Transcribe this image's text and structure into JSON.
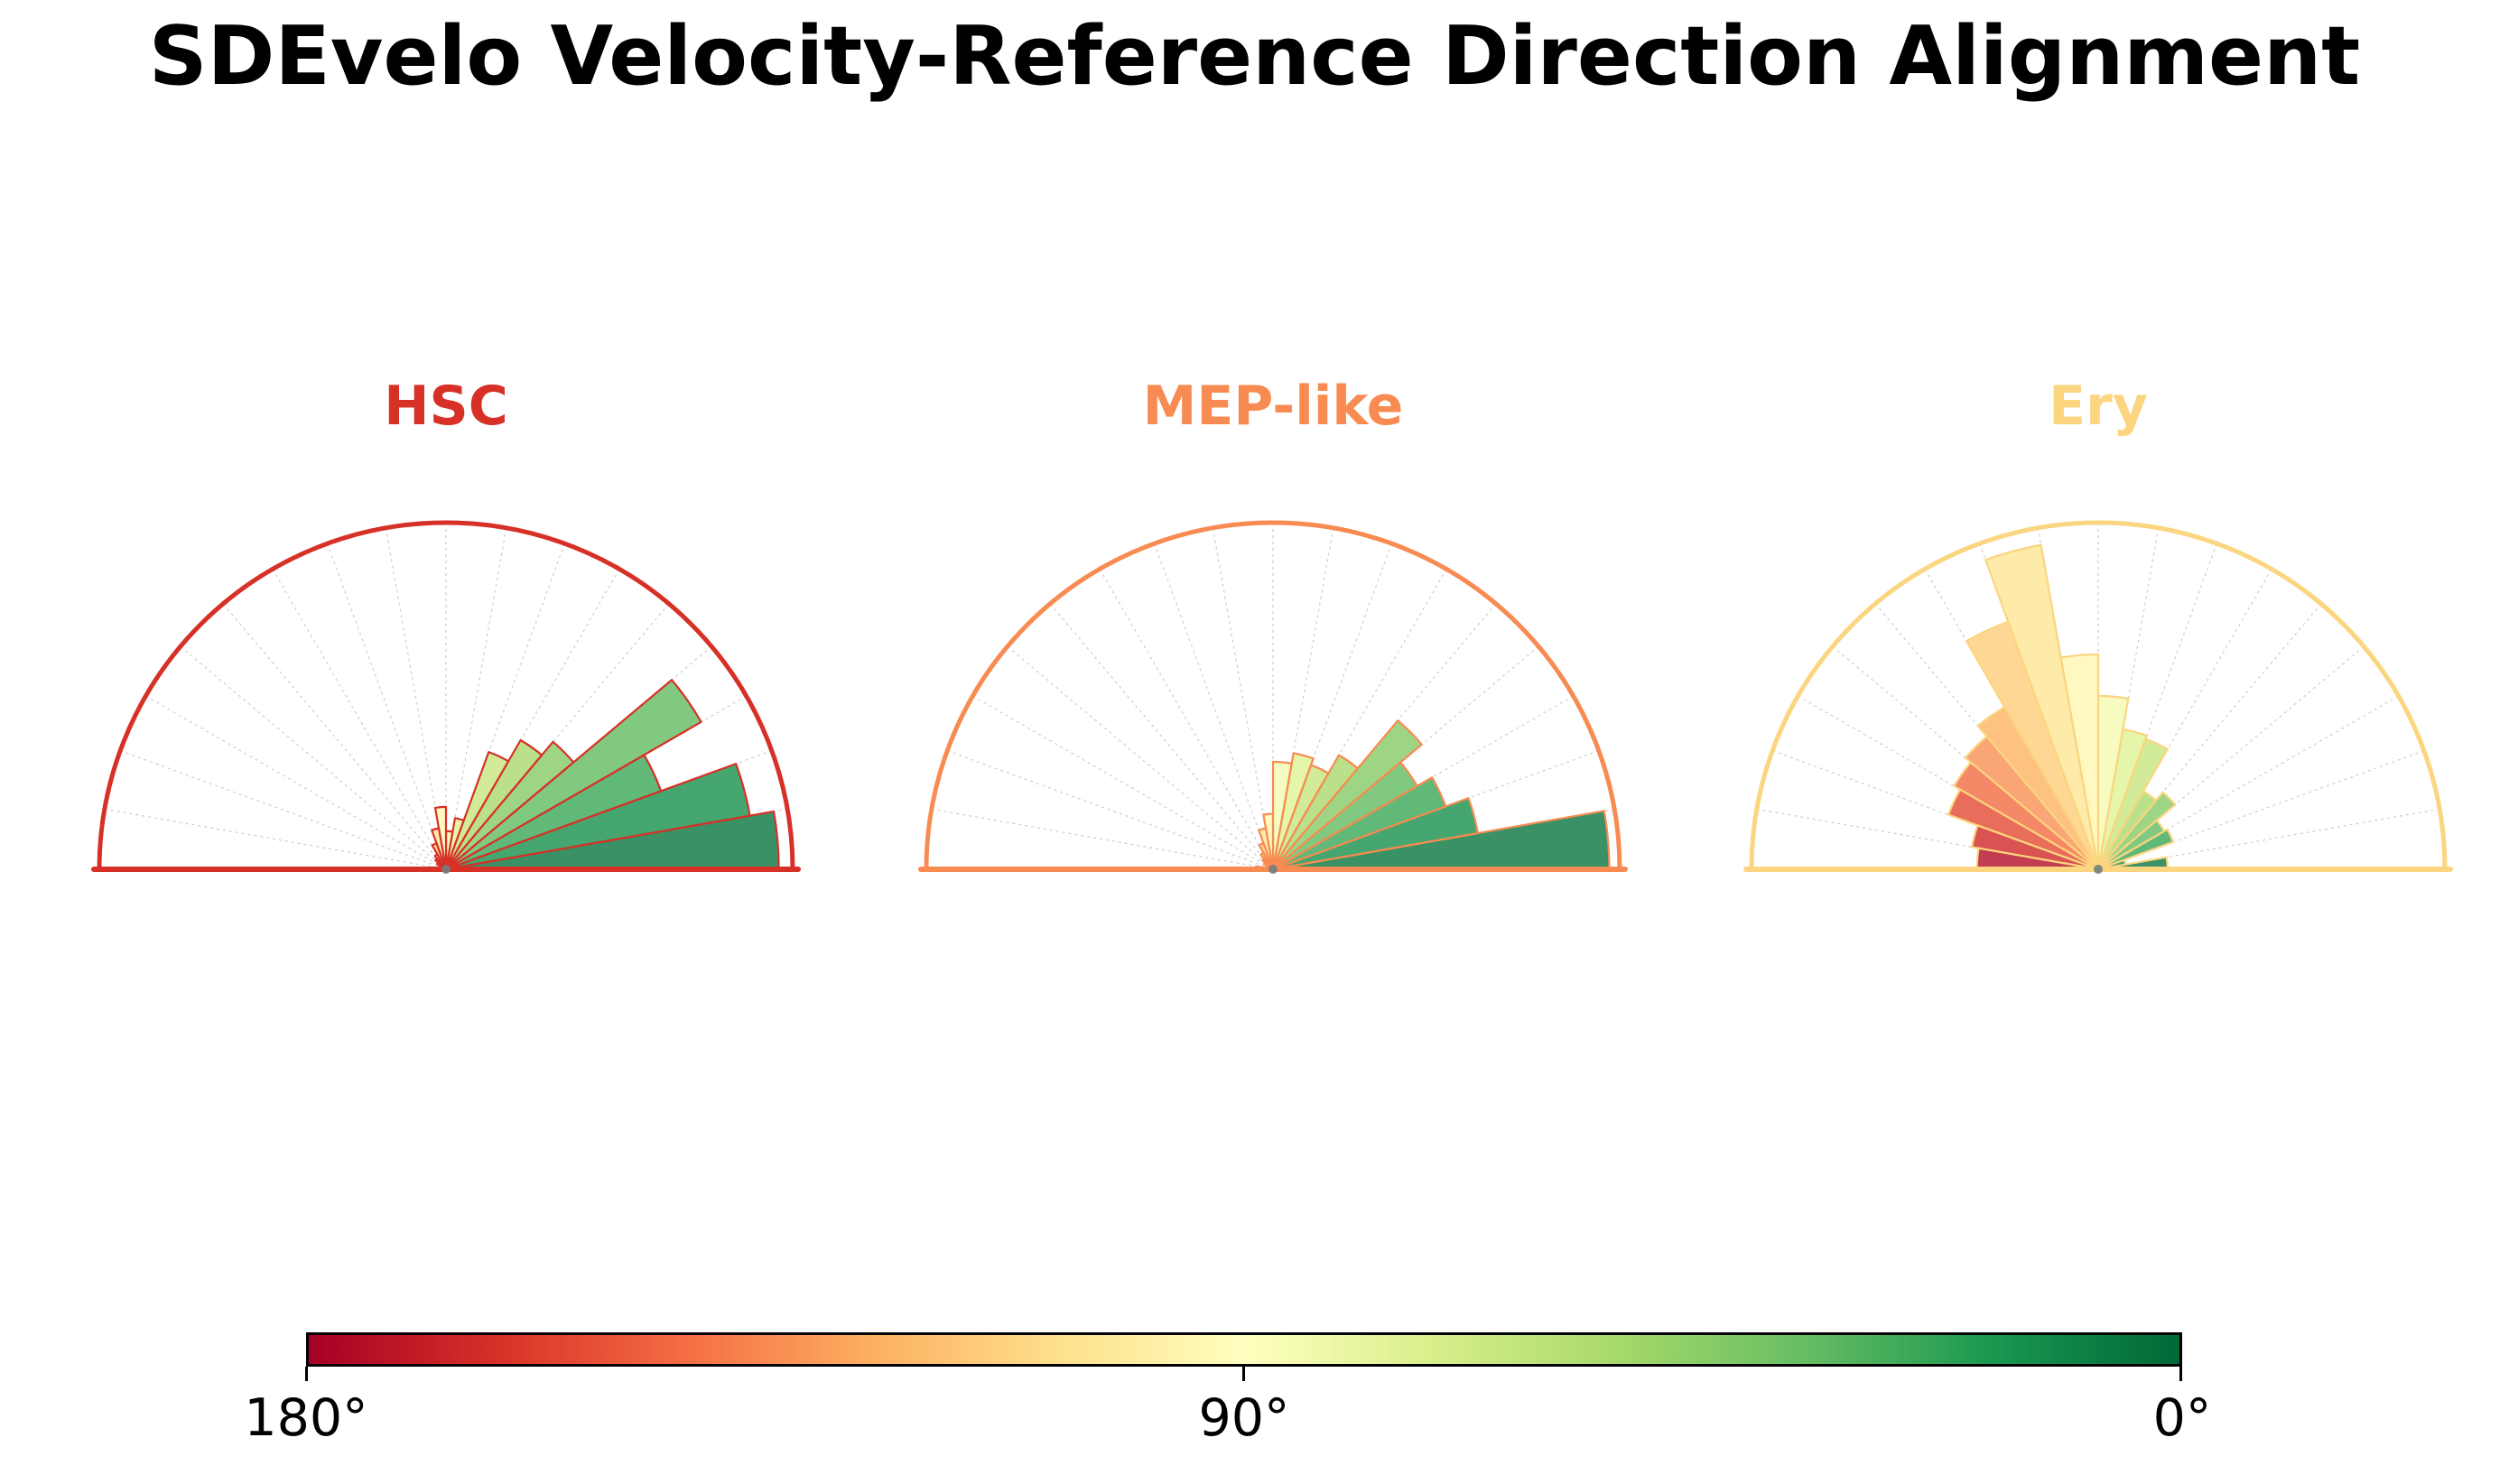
{
  "title": "SDEvelo Velocity-Reference Direction Alignment",
  "chart_data": {
    "type": "bar",
    "subtype": "polar_histogram_half_circle",
    "theta_range_deg": [
      0,
      180
    ],
    "bin_width_deg": 10,
    "bin_edges_deg": [
      0,
      10,
      20,
      30,
      40,
      50,
      60,
      70,
      80,
      90,
      100,
      110,
      120,
      130,
      140,
      150,
      160,
      170,
      180
    ],
    "r_axis": "normalized bar length, 0 at center to 1.0 at outer arc",
    "grid": "dashed light-gray radial spokes every 10 degrees, no radial rings",
    "bar_alpha": 0.8,
    "bar_color_rule": "fill = RdYlGn colormap sampled at (1 - bin_center/180): 0 deg = green, 90 deg = pale yellow, 180 deg = dark red",
    "colormap_anchors": [
      "#a50026",
      "#d73027",
      "#f46d43",
      "#fdae61",
      "#fee08b",
      "#ffffbf",
      "#d9ef8b",
      "#a6d96a",
      "#66bd63",
      "#1a9850",
      "#006837"
    ],
    "series": [
      {
        "name": "HSC",
        "accent_color": "#d73027",
        "values": [
          0.96,
          0.89,
          0.66,
          0.85,
          0.48,
          0.43,
          0.36,
          0.15,
          0.11,
          0.18,
          0.12,
          0.08,
          0.05,
          0.04,
          0.03,
          0.02,
          0.02,
          0.03
        ]
      },
      {
        "name": "MEP-like",
        "accent_color": "#f78b51",
        "values": [
          0.97,
          0.6,
          0.53,
          0.48,
          0.56,
          0.38,
          0.32,
          0.34,
          0.31,
          0.16,
          0.12,
          0.08,
          0.055,
          0.04,
          0.03,
          0.02,
          0.02,
          0.05
        ]
      },
      {
        "name": "Ery",
        "accent_color": "#fbd57f",
        "values": [
          0.2,
          0.08,
          0.23,
          0.22,
          0.29,
          0.26,
          0.4,
          0.41,
          0.5,
          0.62,
          0.95,
          0.76,
          0.54,
          0.5,
          0.48,
          0.46,
          0.37,
          0.35
        ]
      }
    ],
    "colorbar": {
      "orientation": "horizontal",
      "gradient": "RdYlGn reversed relative to angle: left = 180 deg (dark red) to right = 0 deg (dark green)",
      "tick_labels": [
        "180°",
        "90°",
        "0°"
      ],
      "tick_positions": [
        0,
        0.5,
        1
      ]
    }
  }
}
